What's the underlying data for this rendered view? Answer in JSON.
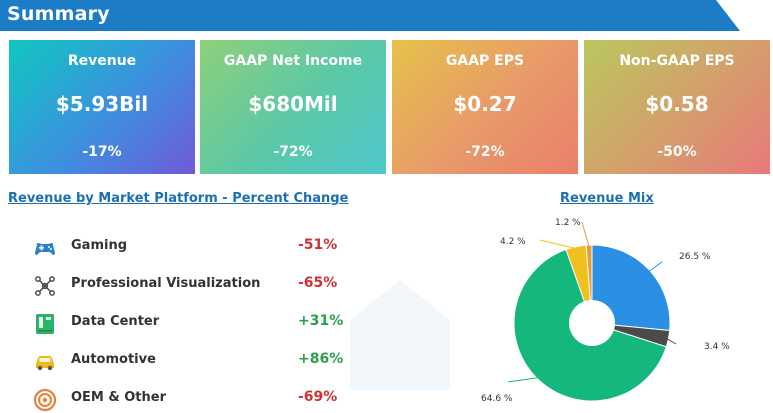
{
  "header": {
    "title": "Summary"
  },
  "cards": [
    {
      "title": "Revenue",
      "value": "$5.93Bil",
      "change": "-17%",
      "gradient": [
        "#10c7c0",
        "#3d8fe0",
        "#6f5ad8"
      ]
    },
    {
      "title": "GAAP Net Income",
      "value": "$680Mil",
      "change": "-72%",
      "gradient": [
        "#8ed07a",
        "#5ac8a8",
        "#4fc7cc"
      ]
    },
    {
      "title": "GAAP EPS",
      "value": "$0.27",
      "change": "-72%",
      "gradient": [
        "#e6c24a",
        "#e8996a",
        "#ea7f6c"
      ]
    },
    {
      "title": "Non-GAAP EPS",
      "value": "$0.58",
      "change": "-50%",
      "gradient": [
        "#b9c85e",
        "#d59e6c",
        "#e8797a"
      ]
    }
  ],
  "platform_title": "Revenue by Market Platform - Percent Change",
  "mix_title": "Revenue Mix",
  "platforms": [
    {
      "icon": "gamepad-icon",
      "label": "Gaming",
      "change": "-51%",
      "sign": "neg"
    },
    {
      "icon": "network-icon",
      "label": "Professional Visualization",
      "change": "-65%",
      "sign": "neg"
    },
    {
      "icon": "server-icon",
      "label": "Data Center",
      "change": "+31%",
      "sign": "pos"
    },
    {
      "icon": "car-icon",
      "label": "Automotive",
      "change": "+86%",
      "sign": "pos"
    },
    {
      "icon": "disc-icon",
      "label": "OEM & Other",
      "change": "-69%",
      "sign": "neg"
    }
  ],
  "colors": {
    "banner": "#1c7cc6",
    "negative": "#d32f2f",
    "positive": "#2e9e4a"
  },
  "chart_data": {
    "type": "pie",
    "title": "Revenue Mix",
    "slices": [
      {
        "value": 26.5,
        "label": "26.5 %",
        "color": "#2b8fe3"
      },
      {
        "value": 3.4,
        "label": "3.4 %",
        "color": "#4a4a4a"
      },
      {
        "value": 64.6,
        "label": "64.6 %",
        "color": "#14b87c"
      },
      {
        "value": 4.2,
        "label": "4.2 %",
        "color": "#f2c01e"
      },
      {
        "value": 1.2,
        "label": "1.2 %",
        "color": "#e89a3c"
      }
    ]
  }
}
